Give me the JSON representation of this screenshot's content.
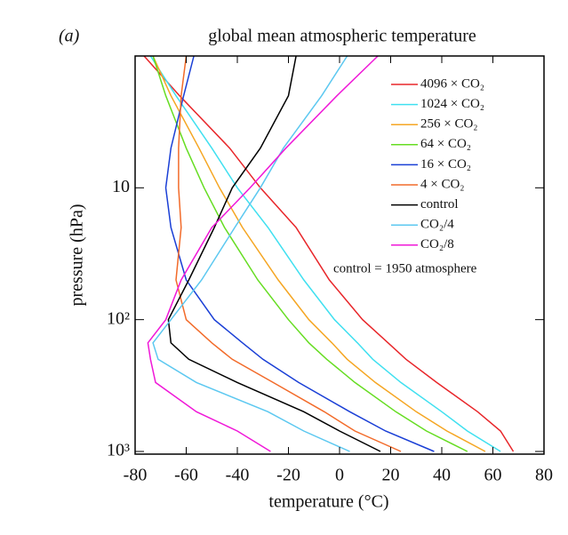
{
  "chart_data": {
    "type": "line",
    "panel_label": "(a)",
    "title": "global mean atmospheric temperature",
    "x_label": "temperature (°C)",
    "y_label": "pressure (hPa)",
    "annotation": "control = 1950 atmosphere",
    "xlim": [
      -80,
      80
    ],
    "xticks": [
      -80,
      -60,
      -40,
      -20,
      0,
      20,
      40,
      60,
      80
    ],
    "ylim": [
      1000,
      1
    ],
    "log_y": true,
    "yticks": [
      10,
      {
        "value": 100,
        "label": "10²"
      },
      {
        "value": 1000,
        "label": "10³"
      }
    ],
    "legend": "upper right",
    "y": [
      1,
      2,
      5,
      10,
      20,
      50,
      100,
      150,
      200,
      300,
      500,
      700,
      1000
    ],
    "series": [
      {
        "name": "4096 × CO₂",
        "color": "#e8262a",
        "values": [
          -76.5,
          -62.6,
          -43,
          -31,
          -17,
          -4,
          9,
          19,
          26,
          38,
          54,
          63,
          68
        ]
      },
      {
        "name": "1024 × CO₂",
        "color": "#40e0f0",
        "values": [
          -74,
          -64,
          -50,
          -40,
          -28,
          -14,
          -2,
          7,
          13,
          24,
          40,
          50,
          63
        ]
      },
      {
        "name": "256 × CO₂",
        "color": "#f5a623",
        "values": [
          -73,
          -66,
          -55,
          -47,
          -38,
          -24,
          -12,
          -3,
          3,
          14,
          30,
          42,
          57
        ]
      },
      {
        "name": "64 × CO₂",
        "color": "#66dd22",
        "values": [
          -73,
          -68,
          -60,
          -53,
          -45,
          -32,
          -20,
          -12,
          -5,
          6,
          22,
          34,
          50
        ]
      },
      {
        "name": "16 × CO₂",
        "color": "#1a3fd6",
        "values": [
          -57,
          -61,
          -66,
          -68,
          -66,
          -60,
          -49,
          -38,
          -30,
          -16,
          4,
          18,
          37
        ]
      },
      {
        "name": "4 × CO₂",
        "color": "#f26b2a",
        "values": [
          -60,
          -62,
          -63,
          -63,
          -62,
          -64,
          -60,
          -50,
          -42,
          -26,
          -6,
          6,
          24
        ]
      },
      {
        "name": "control",
        "color": "#000000",
        "values": [
          -17,
          -20,
          -31,
          -42,
          -49,
          -59,
          -67,
          -66,
          -59,
          -40,
          -14,
          0,
          16
        ]
      },
      {
        "name": "CO₂/4",
        "color": "#5cc8f0",
        "values": [
          3,
          -7,
          -22,
          -31,
          -41,
          -54,
          -66,
          -73,
          -71,
          -56,
          -28,
          -14,
          4
        ]
      },
      {
        "name": "CO₂/8",
        "color": "#f018d8",
        "values": [
          15,
          -1,
          -21,
          -35,
          -50,
          -62,
          -68,
          -75,
          -74,
          -72,
          -56,
          -40,
          -27
        ]
      }
    ]
  }
}
